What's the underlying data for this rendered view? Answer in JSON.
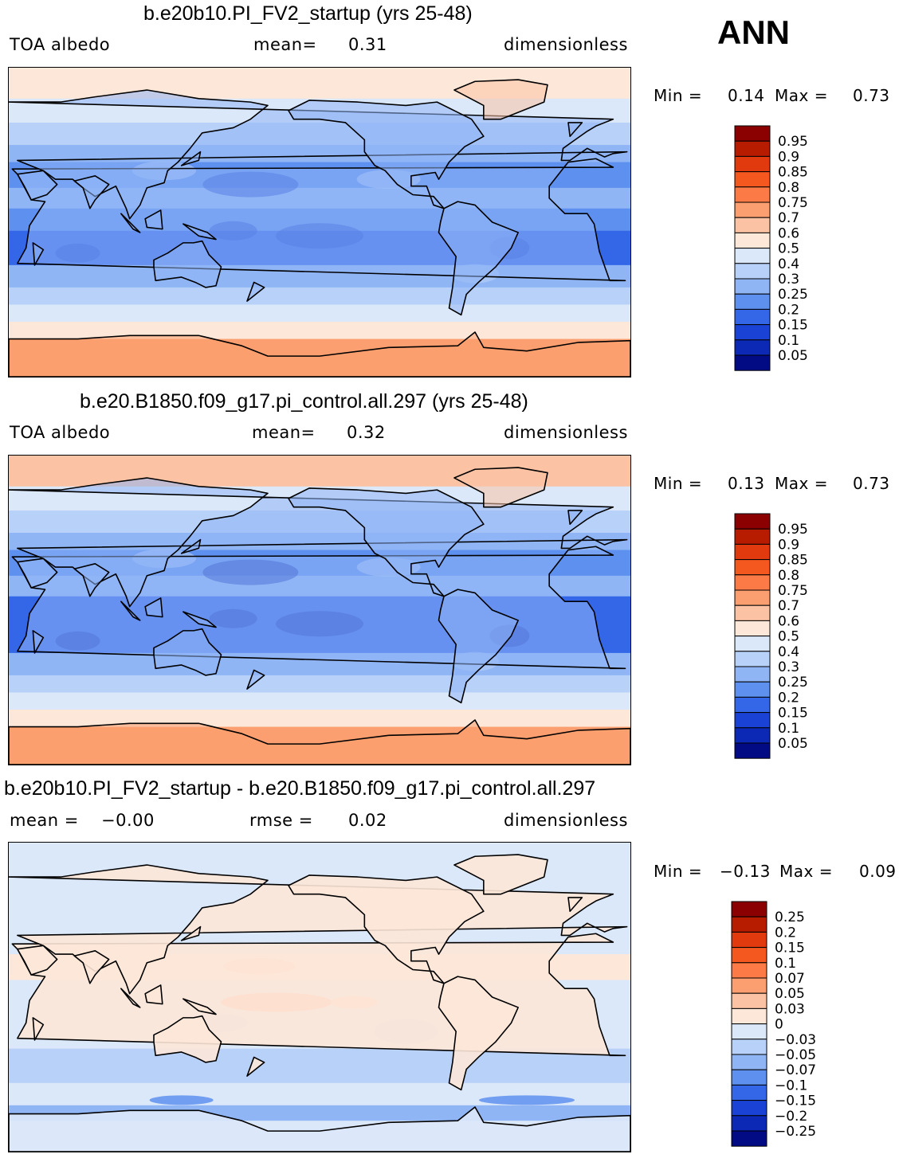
{
  "season": "ANN",
  "panels": [
    {
      "title": "b.e20b10.PI_FV2_startup (yrs 25-48)",
      "left": "TOA albedo",
      "middle_label": "mean=",
      "middle_value": "0.31",
      "right": "dimensionless",
      "min_label": "Min =",
      "min_value": "0.14",
      "max_label": "Max =",
      "max_value": "0.73"
    },
    {
      "title": "b.e20.B1850.f09_g17.pi_control.all.297 (yrs 25-48)",
      "left": "TOA albedo",
      "middle_label": "mean=",
      "middle_value": "0.32",
      "right": "dimensionless",
      "min_label": "Min =",
      "min_value": "0.13",
      "max_label": "Max =",
      "max_value": "0.73"
    },
    {
      "title": "b.e20b10.PI_FV2_startup - b.e20.B1850.f09_g17.pi_control.all.297",
      "left_label": "mean =",
      "left_value": "−0.00",
      "middle_label": "rmse =",
      "middle_value": "0.02",
      "right": "dimensionless",
      "min_label": "Min =",
      "min_value": "−0.13",
      "max_label": "Max =",
      "max_value": "0.09"
    }
  ],
  "chart_data": [
    {
      "type": "heatmap",
      "title": "b.e20b10.PI_FV2_startup (yrs 25-48)",
      "variable": "TOA albedo",
      "units": "dimensionless",
      "mean": 0.31,
      "min": 0.14,
      "max": 0.73,
      "colorbar_levels": [
        "0.95",
        "0.9",
        "0.85",
        "0.8",
        "0.75",
        "0.7",
        "0.6",
        "0.5",
        "0.4",
        "0.3",
        "0.25",
        "0.2",
        "0.15",
        "0.1",
        "0.05"
      ],
      "colorbar_colors": [
        "#8b0000",
        "#b81c00",
        "#e03a0e",
        "#f4581f",
        "#fb7a45",
        "#fc9f70",
        "#fbc3a4",
        "#fde7d8",
        "#dbe8f9",
        "#b8d1f8",
        "#8fb5f5",
        "#5e90f0",
        "#3467e8",
        "#1a43d6",
        "#0b29b5",
        "#020a84"
      ]
    },
    {
      "type": "heatmap",
      "title": "b.e20.B1850.f09_g17.pi_control.all.297 (yrs 25-48)",
      "variable": "TOA albedo",
      "units": "dimensionless",
      "mean": 0.32,
      "min": 0.13,
      "max": 0.73,
      "colorbar_levels": [
        "0.95",
        "0.9",
        "0.85",
        "0.8",
        "0.75",
        "0.7",
        "0.6",
        "0.5",
        "0.4",
        "0.3",
        "0.25",
        "0.2",
        "0.15",
        "0.1",
        "0.05"
      ],
      "colorbar_colors": [
        "#8b0000",
        "#b81c00",
        "#e03a0e",
        "#f4581f",
        "#fb7a45",
        "#fc9f70",
        "#fbc3a4",
        "#fde7d8",
        "#dbe8f9",
        "#b8d1f8",
        "#8fb5f5",
        "#5e90f0",
        "#3467e8",
        "#1a43d6",
        "#0b29b5",
        "#020a84"
      ]
    },
    {
      "type": "heatmap",
      "title": "b.e20b10.PI_FV2_startup - b.e20.B1850.f09_g17.pi_control.all.297",
      "variable": "difference",
      "units": "dimensionless",
      "mean": -0.0,
      "rmse": 0.02,
      "min": -0.13,
      "max": 0.09,
      "colorbar_levels": [
        "0.25",
        "0.2",
        "0.15",
        "0.1",
        "0.07",
        "0.05",
        "0.03",
        "0",
        "−0.03",
        "−0.05",
        "−0.07",
        "−0.1",
        "−0.15",
        "−0.2",
        "−0.25"
      ],
      "colorbar_colors": [
        "#8b0000",
        "#b81c00",
        "#e03a0e",
        "#f4581f",
        "#fb7a45",
        "#fc9f70",
        "#fbc3a4",
        "#fde7d8",
        "#dbe8f9",
        "#b8d1f8",
        "#8fb5f5",
        "#5e90f0",
        "#3467e8",
        "#1a43d6",
        "#0b29b5",
        "#020a84"
      ]
    }
  ]
}
